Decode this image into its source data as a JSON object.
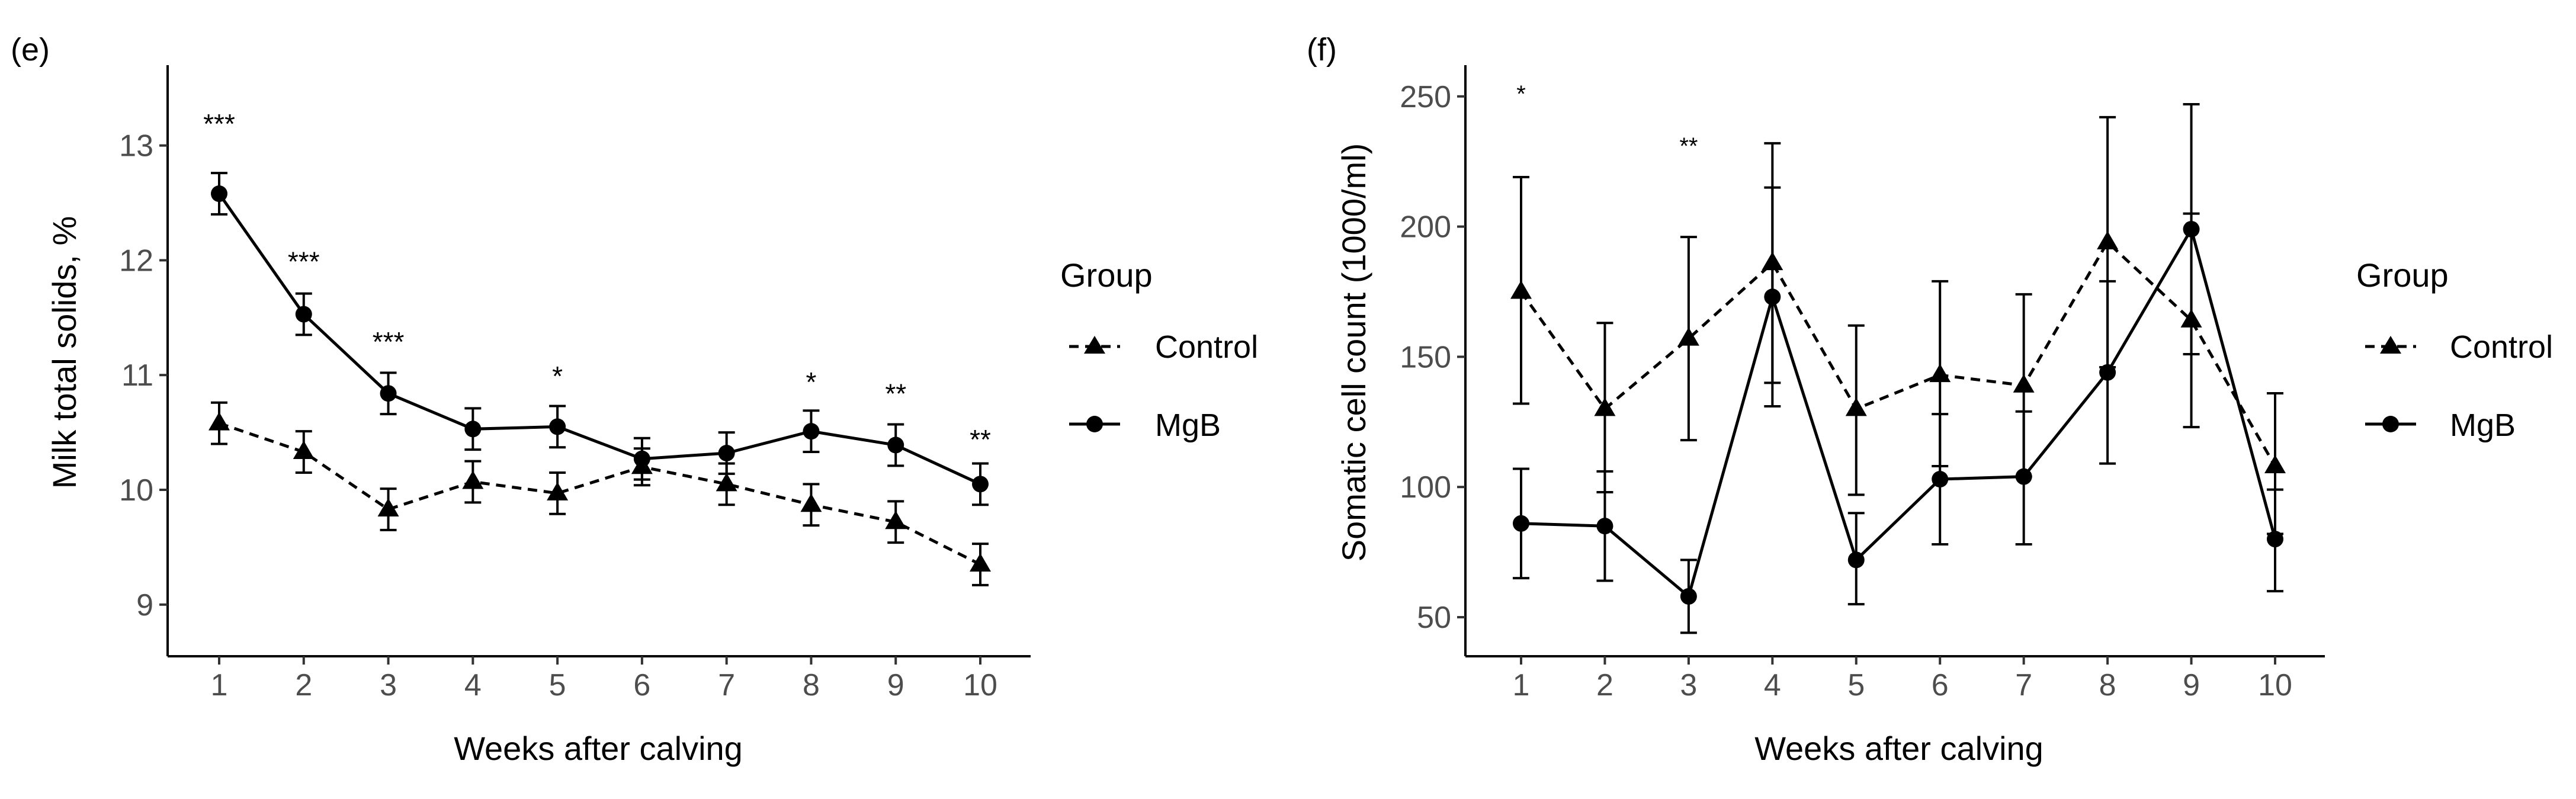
{
  "chart_data": [
    {
      "type": "line",
      "panel_label": "(e)",
      "xlabel": "Weeks after calving",
      "ylabel": "Milk total solids, %",
      "x": [
        1,
        2,
        3,
        4,
        5,
        6,
        7,
        8,
        9,
        10
      ],
      "xticks": [
        "1",
        "2",
        "3",
        "4",
        "5",
        "6",
        "7",
        "8",
        "9",
        "10"
      ],
      "yticks": [
        9,
        10,
        11,
        12,
        13
      ],
      "ylim": [
        8.55,
        13.7
      ],
      "legend": {
        "title": "Group",
        "position": "right"
      },
      "series": [
        {
          "name": "Control",
          "marker": "triangle",
          "line": "dashed",
          "values": [
            10.58,
            10.33,
            9.83,
            10.07,
            9.97,
            10.2,
            10.05,
            9.87,
            9.72,
            9.35
          ],
          "error": [
            0.18,
            0.18,
            0.18,
            0.18,
            0.18,
            0.16,
            0.18,
            0.18,
            0.18,
            0.18
          ]
        },
        {
          "name": "MgB",
          "marker": "circle",
          "line": "solid",
          "values": [
            12.58,
            11.53,
            10.84,
            10.53,
            10.55,
            10.27,
            10.32,
            10.51,
            10.39,
            10.05
          ],
          "error": [
            0.18,
            0.18,
            0.18,
            0.18,
            0.18,
            0.18,
            0.18,
            0.18,
            0.18,
            0.18
          ]
        }
      ],
      "annotations": [
        {
          "x": 1,
          "y": 13.2,
          "text": "***"
        },
        {
          "x": 2,
          "y": 12.0,
          "text": "***"
        },
        {
          "x": 3,
          "y": 11.3,
          "text": "***"
        },
        {
          "x": 5,
          "y": 11.0,
          "text": "*"
        },
        {
          "x": 8,
          "y": 10.95,
          "text": "*"
        },
        {
          "x": 9,
          "y": 10.85,
          "text": "**"
        },
        {
          "x": 10,
          "y": 10.45,
          "text": "**"
        }
      ]
    },
    {
      "type": "line",
      "panel_label": "(f)",
      "xlabel": "Weeks after calving",
      "ylabel": "Somatic cell count (1000/ml)",
      "x": [
        1,
        2,
        3,
        4,
        5,
        6,
        7,
        8,
        9,
        10
      ],
      "xticks": [
        "1",
        "2",
        "3",
        "4",
        "5",
        "6",
        "7",
        "8",
        "9",
        "10"
      ],
      "yticks": [
        50,
        100,
        150,
        200,
        250
      ],
      "ylim": [
        35,
        262
      ],
      "legend": {
        "title": "Group",
        "position": "right"
      },
      "series": [
        {
          "name": "Control",
          "marker": "triangle",
          "line": "dashed",
          "values": [
            175,
            130,
            157,
            186,
            130,
            143,
            139,
            194,
            164,
            108
          ],
          "error_low": [
            132,
            98,
            118,
            140,
            97,
            108,
            104,
            146,
            123,
            82
          ],
          "error_high": [
            219,
            163,
            196,
            232,
            162,
            179,
            174,
            242,
            205,
            136
          ]
        },
        {
          "name": "MgB",
          "marker": "circle",
          "line": "solid",
          "values": [
            86,
            85,
            58,
            173,
            72,
            103,
            104,
            144,
            199,
            80
          ],
          "error_low": [
            65,
            64,
            44,
            131,
            55,
            78,
            78,
            109,
            151,
            60
          ],
          "error_high": [
            107,
            106,
            72,
            215,
            90,
            128,
            129,
            179,
            247,
            99
          ]
        }
      ],
      "annotations": [
        {
          "x": 1,
          "y": 252,
          "text": "*"
        },
        {
          "x": 3,
          "y": 232,
          "text": "**"
        }
      ]
    }
  ]
}
